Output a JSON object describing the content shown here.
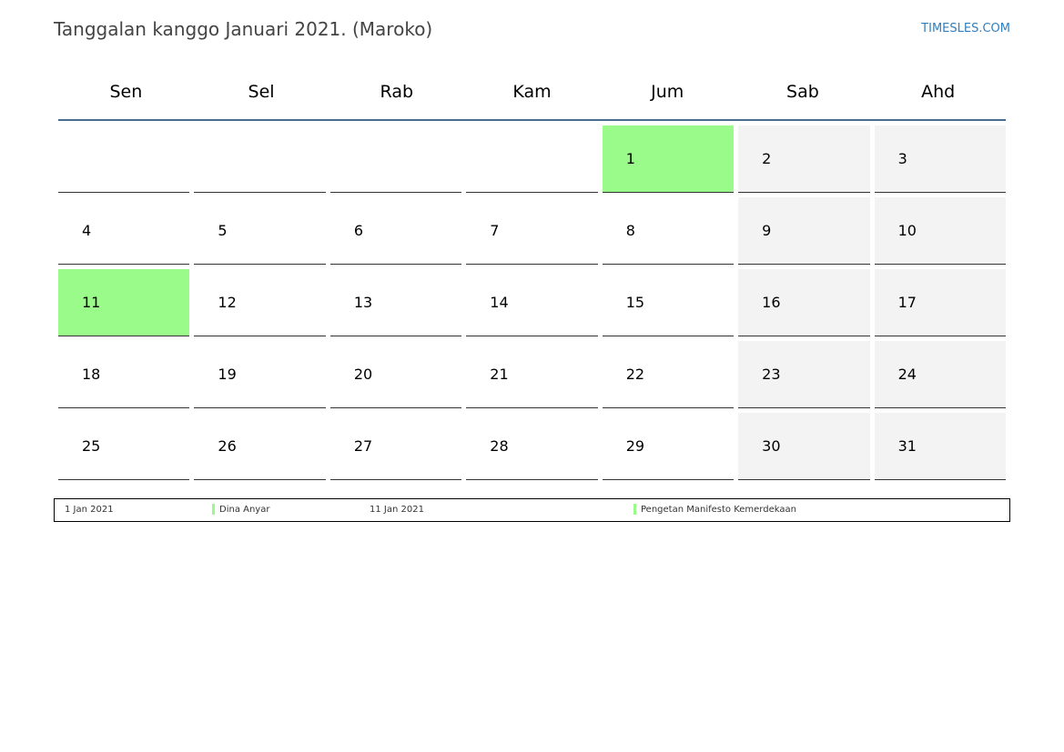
{
  "header": {
    "title": "Tanggalan kanggo Januari 2021. (Maroko)",
    "brand": "TIMESLES.COM"
  },
  "weekdays": [
    "Sen",
    "Sel",
    "Rab",
    "Kam",
    "Jum",
    "Sab",
    "Ahd"
  ],
  "weeks": [
    [
      "",
      "",
      "",
      "",
      "1",
      "2",
      "3"
    ],
    [
      "4",
      "5",
      "6",
      "7",
      "8",
      "9",
      "10"
    ],
    [
      "11",
      "12",
      "13",
      "14",
      "15",
      "16",
      "17"
    ],
    [
      "18",
      "19",
      "20",
      "21",
      "22",
      "23",
      "24"
    ],
    [
      "25",
      "26",
      "27",
      "28",
      "29",
      "30",
      "31"
    ]
  ],
  "holidays": [
    {
      "date": "1 Jan 2021",
      "name": "Dina Anyar"
    },
    {
      "date": "11 Jan 2021",
      "name": "Pengetan Manifesto Kemerdekaan"
    }
  ],
  "colors": {
    "holiday": "#9afa8a",
    "weekend": "#f3f3f3",
    "header_rule": "#4a6c91",
    "brand": "#2f7fc0"
  }
}
